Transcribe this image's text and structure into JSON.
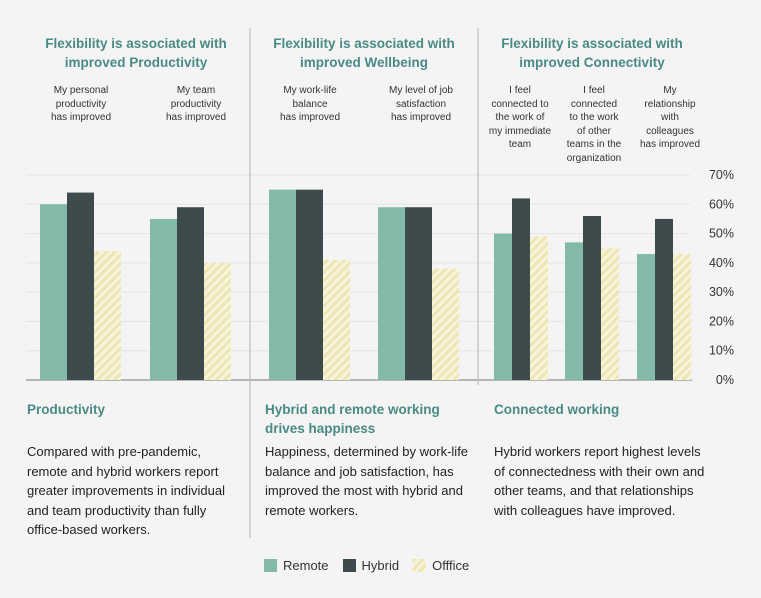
{
  "colors": {
    "remote": "#82b9a9",
    "hybrid": "#3d4b4d",
    "office": "#ede6b4",
    "accent": "#4a8a84"
  },
  "columns": [
    {
      "title_line1": "Flexibility is associated with",
      "title_line2": "improved Productivity",
      "categories": [
        [
          "My personal",
          "productivity",
          "has improved"
        ],
        [
          "My team",
          "productivity",
          "has improved"
        ]
      ],
      "heading": "Productivity",
      "body": "Compared with pre-pandemic, remote and hybrid workers report greater improvements in individual and team productivity than fully office-based workers."
    },
    {
      "title_line1": "Flexibility is associated with",
      "title_line2": "improved Wellbeing",
      "categories": [
        [
          "My work-life",
          "balance",
          "has improved"
        ],
        [
          "My level of job",
          "satisfaction",
          "has improved"
        ]
      ],
      "heading": "Hybrid and remote working drives happiness",
      "body": "Happiness, determined by work-life balance and job satisfaction, has improved the most with hybrid and remote workers."
    },
    {
      "title_line1": "Flexibility is associated with",
      "title_line2": "improved Connectivity",
      "categories": [
        [
          "I feel",
          "connected to",
          "the work of",
          "my immediate",
          "team"
        ],
        [
          "I feel",
          "connected",
          "to the work",
          "of other",
          "teams in the",
          "organization"
        ],
        [
          "My",
          "relationship",
          "with",
          "colleagues",
          "has improved"
        ]
      ],
      "heading": "Connected working",
      "body": "Hybrid workers report highest levels of connectedness with their own and other teams, and that relationships with colleagues have improved."
    }
  ],
  "chart_data": {
    "type": "bar",
    "categories": [
      "My personal productivity has improved",
      "My team productivity has improved",
      "My work-life balance has improved",
      "My level of job satisfaction has improved",
      "I feel connected to the work of my immediate team",
      "I feel connected to the work of other teams in the organization",
      "My relationship with colleagues has improved"
    ],
    "series": [
      {
        "name": "Remote",
        "values": [
          60,
          55,
          65,
          59,
          50,
          47,
          43
        ]
      },
      {
        "name": "Hybrid",
        "values": [
          64,
          59,
          65,
          59,
          62,
          56,
          55
        ]
      },
      {
        "name": "Office",
        "values": [
          44,
          40,
          41,
          38,
          49,
          45,
          43
        ]
      }
    ],
    "ylim": [
      0,
      70
    ],
    "yticks": [
      "0%",
      "10%",
      "20%",
      "30%",
      "40%",
      "50%",
      "60%",
      "70%"
    ],
    "y_axis_position": "right",
    "grid": true,
    "legend_position": "bottom-center"
  },
  "legend": {
    "remote": "Remote",
    "hybrid": "Hybrid",
    "office": "Offfice"
  }
}
